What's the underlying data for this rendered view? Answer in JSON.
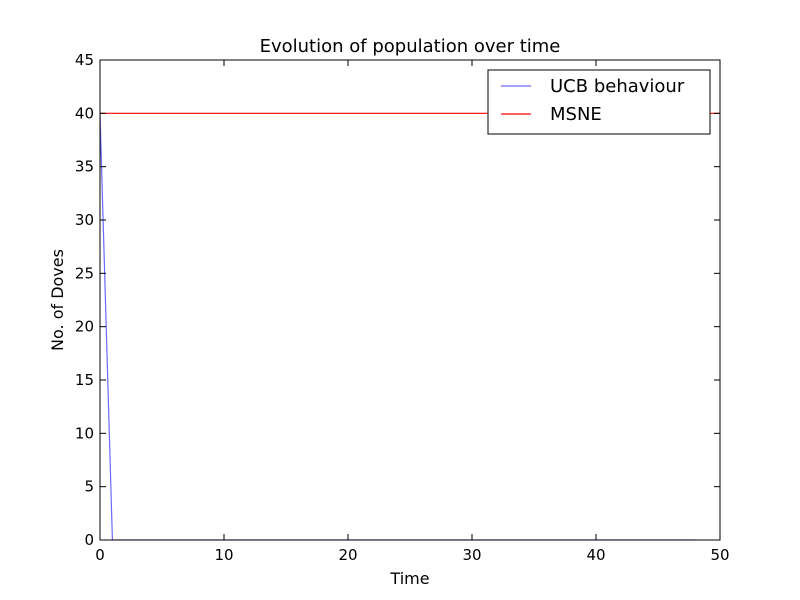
{
  "chart_data": {
    "type": "line",
    "title": "Evolution of population over time",
    "xlabel": "Time",
    "ylabel": "No. of Doves",
    "xlim": [
      0,
      50
    ],
    "ylim": [
      0,
      45
    ],
    "xticks": [
      0,
      10,
      20,
      30,
      40,
      50
    ],
    "yticks": [
      0,
      5,
      10,
      15,
      20,
      25,
      30,
      35,
      40,
      45
    ],
    "grid": false,
    "legend_position": "top-right",
    "series": [
      {
        "name": "UCB behaviour",
        "color": "#6a6aff",
        "x": [
          0,
          1,
          2,
          3,
          4,
          5,
          6,
          7,
          8,
          9,
          10,
          11,
          12,
          13,
          14,
          15,
          16,
          17,
          18,
          19,
          20,
          21,
          22,
          23,
          24,
          25,
          26,
          27,
          28,
          29,
          30,
          31,
          32,
          33,
          34,
          35,
          36,
          37,
          38,
          39,
          40,
          41,
          42,
          43,
          44,
          45,
          46,
          47,
          48
        ],
        "y": [
          40,
          0,
          0,
          0,
          0,
          0,
          0,
          0,
          0,
          0,
          0,
          0,
          0,
          0,
          0,
          0,
          0,
          0,
          0,
          0,
          0,
          0,
          0,
          0,
          0,
          0,
          0,
          0,
          0,
          0,
          0,
          0,
          0,
          0,
          0,
          0,
          0,
          0,
          0,
          0,
          0,
          0,
          0,
          0,
          0,
          0,
          0,
          0,
          0
        ]
      },
      {
        "name": "MSNE",
        "color": "#ff0000",
        "x": [
          0,
          50
        ],
        "y": [
          40,
          40
        ]
      }
    ]
  }
}
